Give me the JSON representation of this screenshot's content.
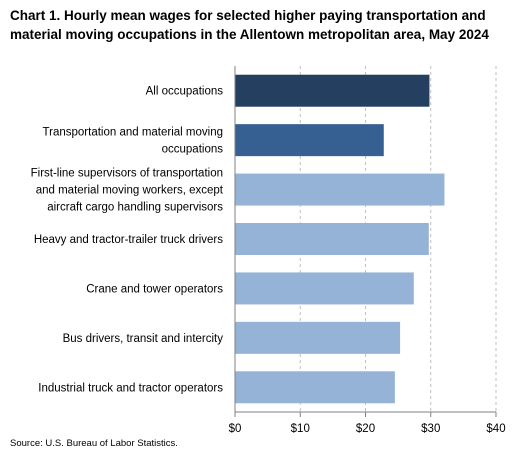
{
  "chart_data": {
    "type": "bar",
    "orientation": "horizontal",
    "title": "Chart 1. Hourly mean wages for selected higher paying transportation and material moving occupations in the Allentown metropolitan area, May 2024",
    "categories": [
      [
        "All occupations"
      ],
      [
        "Transportation and material moving",
        "occupations"
      ],
      [
        "First-line supervisors of transportation",
        "and material moving workers, except",
        "aircraft cargo handling supervisors"
      ],
      [
        "Heavy and tractor-trailer truck drivers"
      ],
      [
        "Crane and tower operators"
      ],
      [
        "Bus drivers, transit and intercity"
      ],
      [
        "Industrial truck and tractor operators"
      ]
    ],
    "values": [
      29.8,
      22.8,
      32.1,
      29.7,
      27.4,
      25.3,
      24.5
    ],
    "bar_colors": [
      "#243f60",
      "#376092",
      "#95b3d7",
      "#95b3d7",
      "#95b3d7",
      "#95b3d7",
      "#95b3d7"
    ],
    "xlim": [
      0,
      40
    ],
    "xticks": [
      0,
      10,
      20,
      30,
      40
    ],
    "xtick_labels": [
      "$0",
      "$10",
      "$20",
      "$30",
      "$40"
    ],
    "grid": "vertical dashed",
    "source": "Source: U.S. Bureau of Labor Statistics."
  }
}
